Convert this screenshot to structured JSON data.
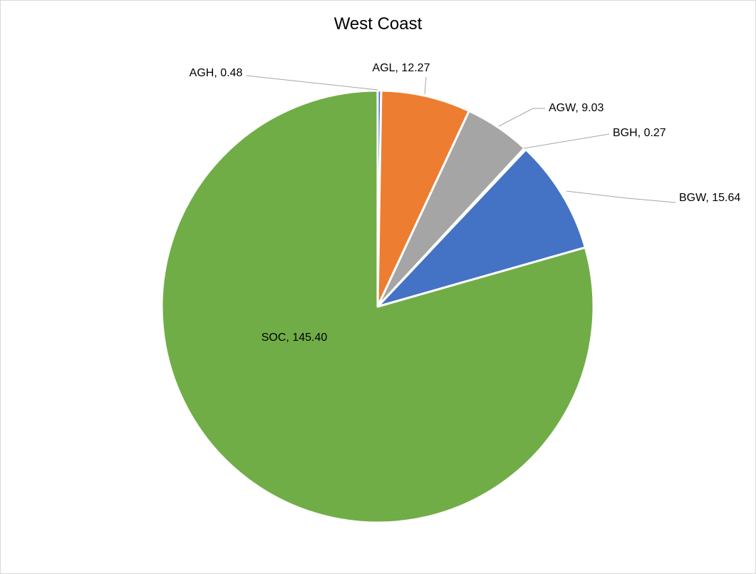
{
  "chart_data": {
    "type": "pie",
    "title": "West Coast",
    "categories": [
      "AGH",
      "AGL",
      "AGW",
      "BGH",
      "BGW",
      "SOC"
    ],
    "values": [
      0.48,
      12.27,
      9.03,
      0.27,
      15.64,
      145.4
    ],
    "value_labels": [
      "0.48",
      "12.27",
      "9.03",
      "0.27",
      "15.64",
      "145.40"
    ],
    "colors": [
      "#4472C4",
      "#ED7D31",
      "#A5A5A5",
      "#FFC000",
      "#4472C4",
      "#70AD47"
    ],
    "start_angle": "12 o'clock",
    "direction": "clockwise",
    "legend": "none",
    "data_labels": "category, value"
  }
}
